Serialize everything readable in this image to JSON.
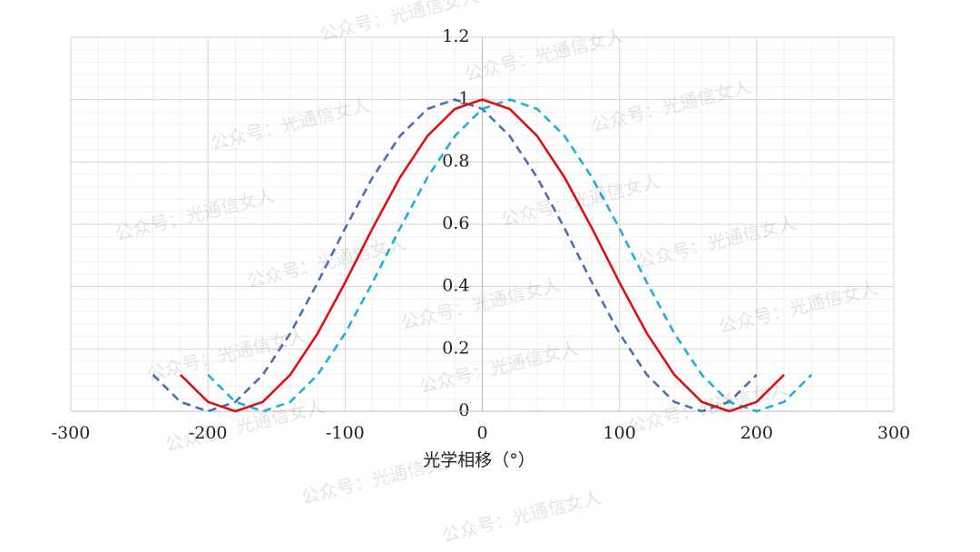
{
  "chart_data": {
    "type": "line",
    "x_label": "光学相移（°）",
    "watermark": "公众号：光通信女人",
    "x": [
      -240,
      -220,
      -200,
      -180,
      -160,
      -140,
      -120,
      -100,
      -80,
      -60,
      -40,
      -20,
      0,
      20,
      40,
      60,
      80,
      100,
      120,
      140,
      160,
      180,
      200,
      220,
      240
    ],
    "series": [
      {
        "color": "#4a6fb5",
        "dashed": true,
        "values": [
          0.117,
          0.03,
          0,
          0.03,
          0.117,
          0.25,
          0.413,
          0.587,
          0.75,
          0.883,
          0.97,
          1,
          0.97,
          0.883,
          0.75,
          0.587,
          0.413,
          0.25,
          0.117,
          0.03,
          0,
          0.03,
          0.117,
          null,
          null
        ]
      },
      {
        "color": "#1eaee0",
        "dashed": true,
        "values": [
          null,
          null,
          0.117,
          0.03,
          0,
          0.03,
          0.117,
          0.25,
          0.413,
          0.587,
          0.75,
          0.883,
          0.97,
          1,
          0.97,
          0.883,
          0.75,
          0.587,
          0.413,
          0.25,
          0.117,
          0.03,
          0,
          0.03,
          0.117
        ]
      },
      {
        "color": "#e01010",
        "dashed": false,
        "values": [
          null,
          0.117,
          0.03,
          0,
          0.03,
          0.117,
          0.25,
          0.413,
          0.587,
          0.75,
          0.883,
          0.97,
          1,
          0.97,
          0.883,
          0.75,
          0.587,
          0.413,
          0.25,
          0.117,
          0.03,
          0,
          0.03,
          0.117,
          null
        ]
      }
    ],
    "xlim": [
      -300,
      300
    ],
    "xticks": [
      -300,
      -200,
      -100,
      0,
      100,
      200,
      300
    ],
    "ylim": [
      0,
      1.2
    ],
    "yticks": [
      0,
      0.2,
      0.4,
      0.6,
      0.8,
      1,
      1.2
    ],
    "grid": true,
    "minor_grid": true
  }
}
